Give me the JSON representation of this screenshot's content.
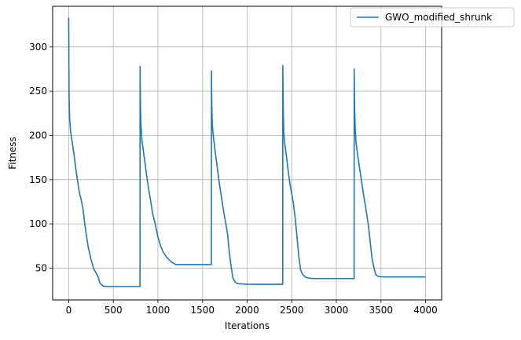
{
  "chart_data": {
    "type": "line",
    "title": "",
    "xlabel": "Iterations",
    "ylabel": "Fitness",
    "xlim": [
      -180,
      4180
    ],
    "ylim": [
      14,
      346
    ],
    "xticks": [
      0,
      500,
      1000,
      1500,
      2000,
      2500,
      3000,
      3500,
      4000
    ],
    "yticks": [
      50,
      100,
      150,
      200,
      250,
      300
    ],
    "grid": true,
    "legend": {
      "placement": "top-right",
      "entries": [
        "GWO_modified_shrunk"
      ]
    },
    "series": [
      {
        "name": "GWO_modified_shrunk",
        "color": "#1f77b4",
        "x": [
          0,
          2,
          5,
          10,
          20,
          40,
          60,
          80,
          100,
          120,
          140,
          160,
          180,
          200,
          220,
          250,
          280,
          310,
          330,
          350,
          380,
          400,
          450,
          500,
          600,
          700,
          790,
          799,
          800,
          802,
          805,
          810,
          820,
          840,
          860,
          880,
          900,
          920,
          940,
          960,
          980,
          1000,
          1030,
          1060,
          1100,
          1150,
          1200,
          1300,
          1400,
          1500,
          1599,
          1600,
          1602,
          1605,
          1610,
          1620,
          1640,
          1660,
          1680,
          1700,
          1720,
          1740,
          1760,
          1780,
          1800,
          1820,
          1840,
          1860,
          1880,
          1900,
          1950,
          2000,
          2100,
          2200,
          2300,
          2399,
          2400,
          2402,
          2405,
          2410,
          2420,
          2440,
          2460,
          2480,
          2500,
          2520,
          2540,
          2560,
          2580,
          2600,
          2620,
          2640,
          2660,
          2700,
          2750,
          2800,
          2900,
          3000,
          3100,
          3199,
          3200,
          3202,
          3205,
          3210,
          3220,
          3240,
          3260,
          3280,
          3300,
          3320,
          3340,
          3360,
          3380,
          3400,
          3420,
          3440,
          3460,
          3480,
          3500,
          3550,
          3600,
          3700,
          3800,
          3900,
          4000
        ],
        "y": [
          333,
          280,
          240,
          220,
          205,
          192,
          178,
          162,
          148,
          135,
          127,
          117,
          100,
          86,
          73,
          60,
          49,
          44,
          40,
          33,
          30,
          29.5,
          29.3,
          29.2,
          29.2,
          29.2,
          29.2,
          29.2,
          278,
          255,
          230,
          212,
          195,
          180,
          165,
          150,
          137,
          125,
          112,
          104,
          95,
          85,
          75,
          68,
          62,
          57,
          54,
          54,
          54,
          54,
          54,
          273,
          250,
          228,
          212,
          200,
          183,
          168,
          152,
          138,
          125,
          112,
          101,
          89,
          68,
          52,
          39,
          35,
          33,
          32.5,
          32,
          31.8,
          31.7,
          31.7,
          31.7,
          31.7,
          279,
          255,
          230,
          205,
          192,
          177,
          160,
          145,
          134,
          122,
          105,
          84,
          62,
          48,
          43,
          41,
          39.5,
          38.5,
          38.3,
          38.2,
          38.2,
          38.2,
          38.2,
          38.2,
          275,
          252,
          230,
          210,
          192,
          177,
          163,
          150,
          136,
          124,
          111,
          98,
          79,
          61,
          51,
          43,
          41,
          40.5,
          40.2,
          40,
          40,
          40,
          40,
          40,
          40
        ]
      }
    ]
  }
}
